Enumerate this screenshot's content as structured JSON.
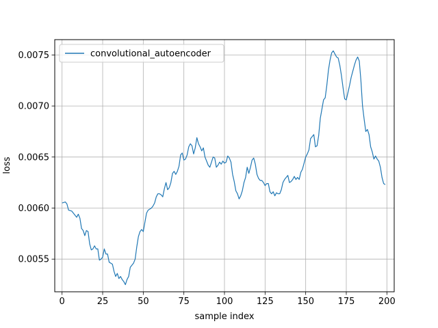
{
  "chart_data": {
    "type": "line",
    "title": "",
    "xlabel": "sample index",
    "ylabel": "loss",
    "xlim": [
      -4.5,
      204.5
    ],
    "ylim": [
      0.00518,
      0.00765
    ],
    "xticks": [
      0,
      25,
      50,
      75,
      100,
      125,
      150,
      175,
      200
    ],
    "yticks": [
      0.0055,
      0.006,
      0.0065,
      0.007,
      0.0075
    ],
    "ytick_labels": [
      "0.0055",
      "0.0060",
      "0.0065",
      "0.0070",
      "0.0075"
    ],
    "grid": true,
    "legend_position": "upper-left",
    "series": [
      {
        "name": "convolutional_autoencoder",
        "color": "#1f77b4",
        "points": [
          [
            0,
            0.00605
          ],
          [
            2,
            0.00606
          ],
          [
            3,
            0.00604
          ],
          [
            4,
            0.00598
          ],
          [
            6,
            0.00597
          ],
          [
            8,
            0.00593
          ],
          [
            9,
            0.00591
          ],
          [
            10,
            0.00594
          ],
          [
            11,
            0.0059
          ],
          [
            12,
            0.0058
          ],
          [
            13,
            0.00578
          ],
          [
            14,
            0.00573
          ],
          [
            15,
            0.00578
          ],
          [
            16,
            0.00577
          ],
          [
            17,
            0.00565
          ],
          [
            18,
            0.00559
          ],
          [
            19,
            0.0056
          ],
          [
            20,
            0.00563
          ],
          [
            21,
            0.0056
          ],
          [
            22,
            0.0056
          ],
          [
            23,
            0.00549
          ],
          [
            24,
            0.0055
          ],
          [
            25,
            0.00552
          ],
          [
            26,
            0.0056
          ],
          [
            27,
            0.00555
          ],
          [
            28,
            0.00555
          ],
          [
            29,
            0.00547
          ],
          [
            30,
            0.00546
          ],
          [
            31,
            0.00545
          ],
          [
            32,
            0.00538
          ],
          [
            33,
            0.00533
          ],
          [
            34,
            0.00536
          ],
          [
            35,
            0.00531
          ],
          [
            36,
            0.00533
          ],
          [
            37,
            0.0053
          ],
          [
            38,
            0.00528
          ],
          [
            39,
            0.00525
          ],
          [
            40,
            0.0053
          ],
          [
            41,
            0.00533
          ],
          [
            42,
            0.00542
          ],
          [
            43,
            0.00544
          ],
          [
            44,
            0.00546
          ],
          [
            45,
            0.0055
          ],
          [
            46,
            0.00562
          ],
          [
            47,
            0.00572
          ],
          [
            48,
            0.00577
          ],
          [
            49,
            0.00579
          ],
          [
            50,
            0.00577
          ],
          [
            51,
            0.00586
          ],
          [
            52,
            0.00595
          ],
          [
            53,
            0.00598
          ],
          [
            54,
            0.00599
          ],
          [
            55,
            0.006
          ],
          [
            56,
            0.00602
          ],
          [
            57,
            0.00605
          ],
          [
            58,
            0.00611
          ],
          [
            59,
            0.00614
          ],
          [
            60,
            0.00614
          ],
          [
            61,
            0.00613
          ],
          [
            62,
            0.00611
          ],
          [
            63,
            0.00619
          ],
          [
            64,
            0.00625
          ],
          [
            65,
            0.00618
          ],
          [
            66,
            0.0062
          ],
          [
            67,
            0.00625
          ],
          [
            68,
            0.00634
          ],
          [
            69,
            0.00636
          ],
          [
            70,
            0.00633
          ],
          [
            71,
            0.00636
          ],
          [
            72,
            0.00641
          ],
          [
            73,
            0.00652
          ],
          [
            74,
            0.00654
          ],
          [
            75,
            0.00647
          ],
          [
            76,
            0.00648
          ],
          [
            77,
            0.00652
          ],
          [
            78,
            0.0066
          ],
          [
            79,
            0.00663
          ],
          [
            80,
            0.00661
          ],
          [
            81,
            0.00653
          ],
          [
            82,
            0.00659
          ],
          [
            83,
            0.00669
          ],
          [
            84,
            0.00663
          ],
          [
            85,
            0.0066
          ],
          [
            86,
            0.00656
          ],
          [
            87,
            0.00659
          ],
          [
            88,
            0.0065
          ],
          [
            89,
            0.00646
          ],
          [
            90,
            0.00642
          ],
          [
            91,
            0.0064
          ],
          [
            92,
            0.00645
          ],
          [
            93,
            0.0065
          ],
          [
            94,
            0.00649
          ],
          [
            95,
            0.0064
          ],
          [
            96,
            0.00642
          ],
          [
            97,
            0.00645
          ],
          [
            98,
            0.00643
          ],
          [
            99,
            0.00646
          ],
          [
            100,
            0.00644
          ],
          [
            101,
            0.00645
          ],
          [
            102,
            0.00651
          ],
          [
            103,
            0.00649
          ],
          [
            104,
            0.00645
          ],
          [
            105,
            0.00633
          ],
          [
            106,
            0.00626
          ],
          [
            107,
            0.00617
          ],
          [
            108,
            0.00614
          ],
          [
            109,
            0.00609
          ],
          [
            110,
            0.00612
          ],
          [
            111,
            0.00617
          ],
          [
            112,
            0.00625
          ],
          [
            113,
            0.0063
          ],
          [
            114,
            0.0064
          ],
          [
            115,
            0.00634
          ],
          [
            116,
            0.0064
          ],
          [
            117,
            0.00647
          ],
          [
            118,
            0.00649
          ],
          [
            119,
            0.00643
          ],
          [
            120,
            0.00633
          ],
          [
            121,
            0.00629
          ],
          [
            122,
            0.00627
          ],
          [
            123,
            0.00627
          ],
          [
            124,
            0.00625
          ],
          [
            125,
            0.00622
          ],
          [
            126,
            0.00624
          ],
          [
            127,
            0.00624
          ],
          [
            128,
            0.00616
          ],
          [
            129,
            0.00614
          ],
          [
            130,
            0.00616
          ],
          [
            131,
            0.00612
          ],
          [
            132,
            0.00615
          ],
          [
            133,
            0.00614
          ],
          [
            134,
            0.00614
          ],
          [
            135,
            0.00618
          ],
          [
            136,
            0.00625
          ],
          [
            137,
            0.00628
          ],
          [
            138,
            0.0063
          ],
          [
            139,
            0.00632
          ],
          [
            140,
            0.00625
          ],
          [
            141,
            0.00626
          ],
          [
            142,
            0.00628
          ],
          [
            143,
            0.00631
          ],
          [
            144,
            0.00628
          ],
          [
            145,
            0.0063
          ],
          [
            146,
            0.00628
          ],
          [
            147,
            0.00635
          ],
          [
            148,
            0.00638
          ],
          [
            149,
            0.00644
          ],
          [
            150,
            0.0065
          ],
          [
            151,
            0.00653
          ],
          [
            152,
            0.00657
          ],
          [
            153,
            0.00668
          ],
          [
            154,
            0.0067
          ],
          [
            155,
            0.00672
          ],
          [
            156,
            0.0066
          ],
          [
            157,
            0.00661
          ],
          [
            158,
            0.00671
          ],
          [
            159,
            0.00688
          ],
          [
            160,
            0.00697
          ],
          [
            161,
            0.00706
          ],
          [
            162,
            0.00708
          ],
          [
            163,
            0.0072
          ],
          [
            164,
            0.00735
          ],
          [
            165,
            0.00745
          ],
          [
            166,
            0.00752
          ],
          [
            167,
            0.00754
          ],
          [
            168,
            0.00751
          ],
          [
            169,
            0.00748
          ],
          [
            170,
            0.00747
          ],
          [
            171,
            0.0074
          ],
          [
            172,
            0.0073
          ],
          [
            173,
            0.00718
          ],
          [
            174,
            0.00707
          ],
          [
            175,
            0.00706
          ],
          [
            176,
            0.00713
          ],
          [
            177,
            0.0072
          ],
          [
            178,
            0.00728
          ],
          [
            179,
            0.00734
          ],
          [
            180,
            0.0074
          ],
          [
            181,
            0.00745
          ],
          [
            182,
            0.00748
          ],
          [
            183,
            0.00744
          ],
          [
            184,
            0.00725
          ],
          [
            185,
            0.007
          ],
          [
            186,
            0.00687
          ],
          [
            187,
            0.00675
          ],
          [
            188,
            0.00677
          ],
          [
            189,
            0.00672
          ],
          [
            190,
            0.0066
          ],
          [
            191,
            0.00655
          ],
          [
            192,
            0.00648
          ],
          [
            193,
            0.00651
          ],
          [
            194,
            0.00648
          ],
          [
            195,
            0.00646
          ],
          [
            196,
            0.0064
          ],
          [
            197,
            0.0063
          ],
          [
            198,
            0.00624
          ],
          [
            199,
            0.00623
          ]
        ]
      }
    ]
  }
}
